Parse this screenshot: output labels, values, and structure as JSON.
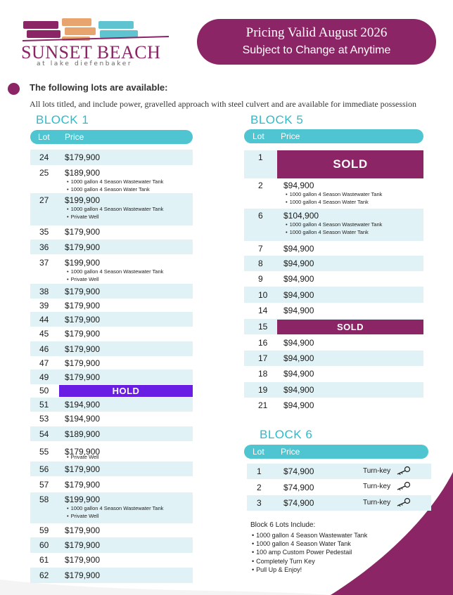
{
  "brand": {
    "name": "SUNSET BEACH",
    "subtitle": "at lake diefenbaker",
    "colors": {
      "magenta": "#8b2566",
      "teal": "#4ec5d0",
      "hold": "#6a1de3",
      "row": "#e0f2f6",
      "orange": "#e8a46e"
    }
  },
  "banner": {
    "line1": "Pricing Valid August 2026",
    "line2": "Subject to Change at Anytime"
  },
  "intro": {
    "heading": "The following lots are available:",
    "text": "All lots titled, and include power, gravelled approach with steel culvert and are available for immediate possession"
  },
  "block1": {
    "title": "BLOCK 1",
    "col_lot": "Lot",
    "col_price": "Price",
    "rows": [
      {
        "lot": "24",
        "price": "$179,900"
      },
      {
        "lot": "25",
        "price": "$189,900",
        "f1": "1000 gallon 4 Season Wastewater Tank",
        "f2": "1000 gallon 4 Season Water Tank"
      },
      {
        "lot": "27",
        "price": "$199,900",
        "f1": "1000 gallon 4 Season Wastewater Tank",
        "f2": "Private Well"
      },
      {
        "lot": "35",
        "price": "$179,900"
      },
      {
        "lot": "36",
        "price": "$179,900"
      },
      {
        "lot": "37",
        "price": "$199,900",
        "f1": "1000 gallon 4 Season Wastewater Tank",
        "f2": "Private Well"
      },
      {
        "lot": "38",
        "price": "$179,900"
      },
      {
        "lot": "39",
        "price": "$179,900"
      },
      {
        "lot": "44",
        "price": "$179,900"
      },
      {
        "lot": "45",
        "price": "$179,900"
      },
      {
        "lot": "46",
        "price": "$179,900"
      },
      {
        "lot": "47",
        "price": "$179,900"
      },
      {
        "lot": "49",
        "price": "$179,900"
      },
      {
        "lot": "50",
        "status": "HOLD"
      },
      {
        "lot": "51",
        "price": "$194,900"
      },
      {
        "lot": "53",
        "price": "$194,900"
      },
      {
        "lot": "54",
        "price": "$189,900"
      },
      {
        "lot": "55",
        "price": "$179,900",
        "f1": "Private Well"
      },
      {
        "lot": "56",
        "price": "$179,900"
      },
      {
        "lot": "57",
        "price": "$179,900"
      },
      {
        "lot": "58",
        "price": "$199,900",
        "f1": "1000 gallon 4 Season Wastewater Tank",
        "f2": "Private Well"
      },
      {
        "lot": "59",
        "price": "$179,900"
      },
      {
        "lot": "60",
        "price": "$179,900"
      },
      {
        "lot": "61",
        "price": "$179,900"
      },
      {
        "lot": "62",
        "price": "$179,900"
      }
    ]
  },
  "block5": {
    "title": "BLOCK 5",
    "col_lot": "Lot",
    "col_price": "Price",
    "rows": [
      {
        "lot": "1",
        "status": "SOLD"
      },
      {
        "lot": "2",
        "price": "$94,900",
        "f1": "1000 gallon 4 Season Wastewater Tank",
        "f2": "1000 gallon 4 Season Water Tank"
      },
      {
        "lot": "6",
        "price": "$104,900",
        "f1": "1000 gallon 4 Season Wastewater Tank",
        "f2": "1000 gallon 4 Season Water Tank"
      },
      {
        "lot": "7",
        "price": "$94,900"
      },
      {
        "lot": "8",
        "price": "$94,900"
      },
      {
        "lot": "9",
        "price": "$94,900"
      },
      {
        "lot": "10",
        "price": "$94,900"
      },
      {
        "lot": "14",
        "price": "$94,900"
      },
      {
        "lot": "15",
        "status": "SOLD"
      },
      {
        "lot": "16",
        "price": "$94,900"
      },
      {
        "lot": "17",
        "price": "$94,900"
      },
      {
        "lot": "18",
        "price": "$94,900"
      },
      {
        "lot": "19",
        "price": "$94,900"
      },
      {
        "lot": "21",
        "price": "$94,900"
      }
    ]
  },
  "block6": {
    "title": "BLOCK 6",
    "col_lot": "Lot",
    "col_price": "Price",
    "rows": [
      {
        "lot": "1",
        "price": "$74,900",
        "note": "Turn-key"
      },
      {
        "lot": "2",
        "price": "$74,900",
        "note": "Turn-key"
      },
      {
        "lot": "3",
        "price": "$74,900",
        "note": "Turn-key"
      }
    ],
    "includes_title": "Block 6 Lots Include:",
    "includes": [
      "1000 gallon 4 Season Wastewater Tank",
      "1000 gallon 4 Season Water Tank",
      "100 amp Custom Power Pedestail",
      "Completely Turn Key",
      "Pull Up & Enjoy!"
    ],
    "key_icon": "key-icon"
  }
}
